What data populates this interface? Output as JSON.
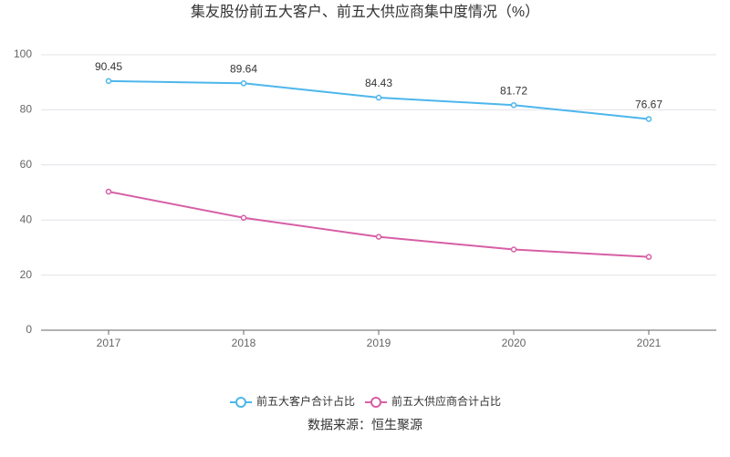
{
  "chart_data": {
    "type": "line",
    "title": "集友股份前五大客户、前五大供应商集中度情况（%）",
    "source": "数据来源：恒生聚源",
    "categories": [
      "2017",
      "2018",
      "2019",
      "2020",
      "2021"
    ],
    "series": [
      {
        "name": "前五大客户合计占比",
        "color": "#4db6ec",
        "show_labels": true,
        "values": [
          90.45,
          89.64,
          84.43,
          81.72,
          76.67
        ]
      },
      {
        "name": "前五大供应商合计占比",
        "color": "#d65fa5",
        "show_labels": false,
        "values": [
          50.3,
          40.8,
          33.9,
          29.3,
          26.6
        ]
      }
    ],
    "ylim": [
      0,
      100
    ],
    "yticks": [
      0,
      20,
      40,
      60,
      80,
      100
    ],
    "grid": true,
    "legend": "bottom"
  }
}
